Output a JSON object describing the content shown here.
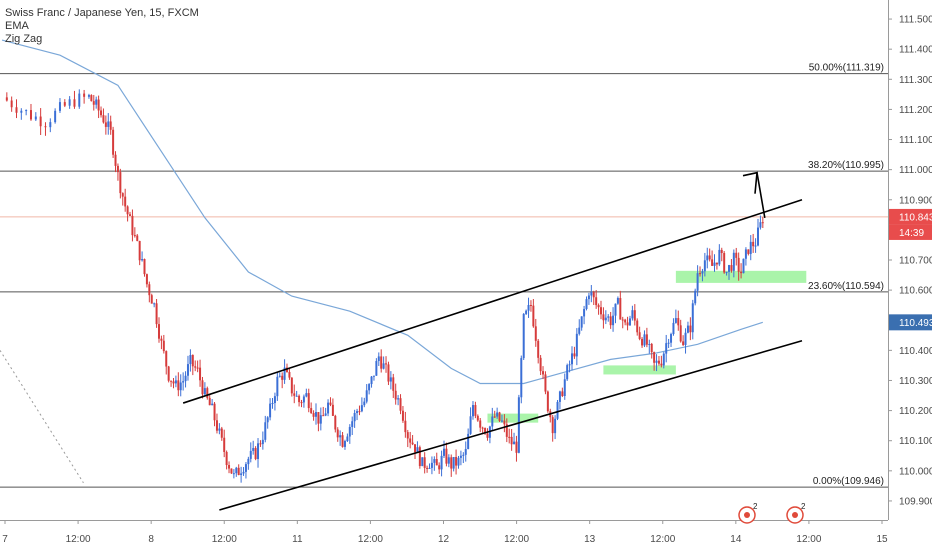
{
  "header": {
    "symbol": "Swiss Franc / Japanese Yen, 15, FXCM",
    "indicator_1": "EMA",
    "indicator_2": "Zig Zag"
  },
  "price_tags": {
    "last_price": "110.843",
    "countdown": "14:39",
    "ema_value": "110.493"
  },
  "colors": {
    "up": "#3b6fd6",
    "down": "#d63b3b",
    "ema": "#7aa7d8",
    "fib_line": "#555555",
    "last_price_line": "#f0b7a8",
    "last_tag": "#e84c4c",
    "ema_tag": "#3a6fb0",
    "zone": "#8ef08e",
    "channel": "#000000",
    "zigzag": "#999999"
  },
  "chart_data": {
    "type": "candlestick",
    "instrument": "Swiss Franc / Japanese Yen",
    "interval": "15",
    "source": "FXCM",
    "ylim": [
      109.85,
      111.55
    ],
    "y_ticks": [
      "111.500",
      "111.400",
      "111.300",
      "111.200",
      "111.100",
      "111.000",
      "110.900",
      "110.800",
      "110.700",
      "110.600",
      "110.500",
      "110.400",
      "110.300",
      "110.200",
      "110.100",
      "110.000",
      "109.900"
    ],
    "x_ticks": [
      "7",
      "12:00",
      "8",
      "12:00",
      "11",
      "12:00",
      "12",
      "12:00",
      "13",
      "12:00",
      "14",
      "12:00",
      "15"
    ],
    "fibonacci_levels": [
      {
        "label": "50.00%(111.319)",
        "value": 111.319
      },
      {
        "label": "38.20%(110.995)",
        "value": 110.995
      },
      {
        "label": "23.60%(110.594)",
        "value": 110.594
      },
      {
        "label": "0.00%(109.946)",
        "value": 109.946
      }
    ],
    "last_price": 110.843,
    "ema_last": 110.493,
    "price_path": [
      [
        0,
        111.24
      ],
      [
        2,
        111.21
      ],
      [
        4,
        111.18
      ],
      [
        6,
        111.16
      ],
      [
        8,
        111.2
      ],
      [
        10,
        111.23
      ],
      [
        12,
        111.24
      ],
      [
        13,
        111.21
      ],
      [
        14,
        111.17
      ],
      [
        15,
        111.12
      ],
      [
        16,
        110.98
      ],
      [
        17,
        110.88
      ],
      [
        18,
        110.8
      ],
      [
        19,
        110.72
      ],
      [
        20,
        110.62
      ],
      [
        21,
        110.55
      ],
      [
        22,
        110.42
      ],
      [
        23,
        110.32
      ],
      [
        24,
        110.28
      ],
      [
        25,
        110.3
      ],
      [
        26,
        110.36
      ],
      [
        27,
        110.33
      ],
      [
        28,
        110.25
      ],
      [
        29,
        110.2
      ],
      [
        30,
        110.12
      ],
      [
        31,
        110.04
      ],
      [
        32,
        109.98
      ],
      [
        33,
        110.01
      ],
      [
        34,
        110.04
      ],
      [
        35,
        110.06
      ],
      [
        36,
        110.12
      ],
      [
        37,
        110.2
      ],
      [
        38,
        110.3
      ],
      [
        39,
        110.33
      ],
      [
        40,
        110.27
      ],
      [
        41,
        110.23
      ],
      [
        42,
        110.25
      ],
      [
        43,
        110.2
      ],
      [
        44,
        110.16
      ],
      [
        45,
        110.22
      ],
      [
        46,
        110.15
      ],
      [
        47,
        110.1
      ],
      [
        48,
        110.15
      ],
      [
        49,
        110.2
      ],
      [
        50,
        110.23
      ],
      [
        51,
        110.3
      ],
      [
        52,
        110.38
      ],
      [
        53,
        110.33
      ],
      [
        54,
        110.27
      ],
      [
        55,
        110.22
      ],
      [
        56,
        110.12
      ],
      [
        57,
        110.08
      ],
      [
        58,
        110.02
      ],
      [
        59,
        110.03
      ],
      [
        60,
        110.01
      ],
      [
        61,
        110.05
      ],
      [
        62,
        110.02
      ],
      [
        63,
        110.03
      ],
      [
        64,
        110.06
      ],
      [
        65,
        110.22
      ],
      [
        66,
        110.16
      ],
      [
        67,
        110.13
      ],
      [
        68,
        110.18
      ],
      [
        69,
        110.16
      ],
      [
        70,
        110.1
      ],
      [
        71,
        110.08
      ],
      [
        72,
        110.5
      ],
      [
        73,
        110.55
      ],
      [
        74,
        110.4
      ],
      [
        75,
        110.25
      ],
      [
        76,
        110.15
      ],
      [
        77,
        110.24
      ],
      [
        78,
        110.33
      ],
      [
        79,
        110.4
      ],
      [
        80,
        110.5
      ],
      [
        81,
        110.6
      ],
      [
        82,
        110.55
      ],
      [
        83,
        110.52
      ],
      [
        84,
        110.5
      ],
      [
        85,
        110.55
      ],
      [
        86,
        110.48
      ],
      [
        87,
        110.52
      ],
      [
        88,
        110.45
      ],
      [
        89,
        110.42
      ],
      [
        90,
        110.35
      ],
      [
        91,
        110.37
      ],
      [
        92,
        110.45
      ],
      [
        93,
        110.5
      ],
      [
        94,
        110.43
      ],
      [
        95,
        110.48
      ],
      [
        96,
        110.66
      ],
      [
        97,
        110.7
      ],
      [
        98,
        110.68
      ],
      [
        99,
        110.72
      ],
      [
        100,
        110.66
      ],
      [
        101,
        110.7
      ],
      [
        102,
        110.66
      ],
      [
        103,
        110.74
      ],
      [
        104,
        110.76
      ],
      [
        105,
        110.84
      ]
    ],
    "ema_path": [
      [
        0,
        111.43
      ],
      [
        8,
        111.38
      ],
      [
        16,
        111.28
      ],
      [
        22,
        111.06
      ],
      [
        28,
        110.84
      ],
      [
        34,
        110.66
      ],
      [
        40,
        110.58
      ],
      [
        48,
        110.53
      ],
      [
        56,
        110.45
      ],
      [
        62,
        110.34
      ],
      [
        66,
        110.29
      ],
      [
        72,
        110.29
      ],
      [
        78,
        110.33
      ],
      [
        84,
        110.37
      ],
      [
        90,
        110.39
      ],
      [
        96,
        110.42
      ],
      [
        102,
        110.47
      ],
      [
        105,
        110.493
      ]
    ],
    "upper_channel": [
      [
        25,
        110.225
      ],
      [
        105,
        110.9
      ]
    ],
    "lower_channel": [
      [
        30,
        109.87
      ],
      [
        105,
        110.432
      ]
    ],
    "target_arrow": [
      [
        105,
        110.84
      ],
      [
        109,
        110.99
      ]
    ],
    "zigzag_segment": [
      [
        0,
        110.4
      ],
      [
        14,
        109.96
      ]
    ],
    "support_zones": [
      {
        "x0": 67,
        "x1": 74,
        "y_low": 110.16,
        "y_high": 110.19
      },
      {
        "x0": 83,
        "x1": 93,
        "y_low": 110.32,
        "y_high": 110.35
      },
      {
        "x0": 93,
        "x1": 111,
        "y_low": 110.624,
        "y_high": 110.664
      }
    ]
  }
}
